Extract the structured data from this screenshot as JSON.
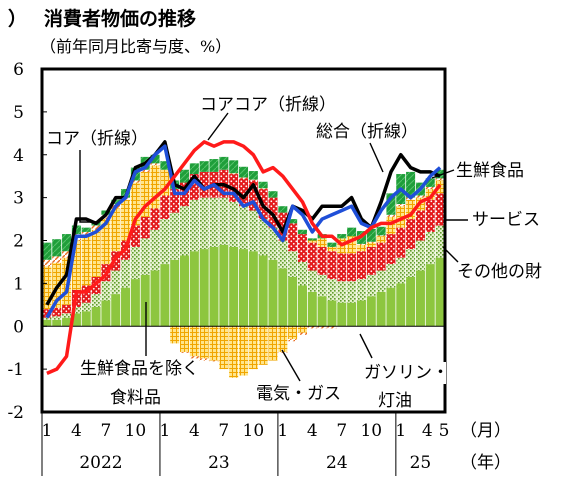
{
  "chart_data": {
    "type": "bar",
    "heading_mark": "）",
    "title": "消費者物価の推移",
    "subtitle": "（前年同月比寄与度、%）",
    "ylim": [
      -2,
      6
    ],
    "y_ticks": [
      "6",
      "5",
      "4",
      "3",
      "2",
      "1",
      "0",
      "-1",
      "-2"
    ],
    "month_ticks": [
      "1",
      "4",
      "7",
      "10",
      "1",
      "4",
      "7",
      "10",
      "1",
      "4",
      "7",
      "10",
      "1",
      "4",
      "5"
    ],
    "year_labels": [
      "2022",
      "23",
      "24",
      "25"
    ],
    "x_unit_month": "（月）",
    "x_unit_year": "（年）",
    "categories": [
      "2022-01",
      "2022-02",
      "2022-03",
      "2022-04",
      "2022-05",
      "2022-06",
      "2022-07",
      "2022-08",
      "2022-09",
      "2022-10",
      "2022-11",
      "2022-12",
      "2023-01",
      "2023-02",
      "2023-03",
      "2023-04",
      "2023-05",
      "2023-06",
      "2023-07",
      "2023-08",
      "2023-09",
      "2023-10",
      "2023-11",
      "2023-12",
      "2024-01",
      "2024-02",
      "2024-03",
      "2024-04",
      "2024-05",
      "2024-06",
      "2024-07",
      "2024-08",
      "2024-09",
      "2024-10",
      "2024-11",
      "2024-12",
      "2025-01",
      "2025-02",
      "2025-03",
      "2025-04",
      "2025-05"
    ],
    "series": [
      {
        "name": "その他の財",
        "color": "#8dc63f",
        "pattern": "solid",
        "values": [
          0.15,
          0.15,
          0.2,
          0.3,
          0.35,
          0.45,
          0.6,
          0.75,
          0.9,
          1.1,
          1.2,
          1.3,
          1.45,
          1.55,
          1.65,
          1.75,
          1.8,
          1.85,
          1.9,
          1.85,
          1.8,
          1.75,
          1.65,
          1.55,
          1.35,
          1.15,
          0.95,
          0.8,
          0.7,
          0.6,
          0.55,
          0.55,
          0.6,
          0.7,
          0.8,
          0.9,
          1.0,
          1.15,
          1.3,
          1.45,
          1.6
        ]
      },
      {
        "name": "生鮮食品を除く食料品",
        "color": "#c9e3a0",
        "pattern": "dots",
        "values": [
          0.05,
          0.08,
          0.1,
          0.15,
          0.2,
          0.3,
          0.45,
          0.55,
          0.65,
          0.75,
          0.85,
          0.95,
          1.05,
          1.1,
          1.15,
          1.2,
          1.2,
          1.15,
          1.1,
          1.05,
          1.0,
          0.95,
          0.85,
          0.75,
          0.65,
          0.6,
          0.55,
          0.5,
          0.5,
          0.5,
          0.5,
          0.5,
          0.5,
          0.5,
          0.5,
          0.55,
          0.6,
          0.65,
          0.7,
          0.75,
          0.75
        ]
      },
      {
        "name": "サービス",
        "color": "#e31a1c",
        "pattern": "dots",
        "values": [
          0.2,
          0.2,
          0.2,
          0.4,
          0.4,
          0.4,
          0.4,
          0.45,
          0.45,
          0.5,
          0.5,
          0.5,
          0.55,
          0.55,
          0.55,
          0.6,
          0.6,
          0.6,
          0.65,
          0.65,
          0.65,
          0.7,
          0.7,
          0.7,
          0.65,
          0.65,
          0.65,
          0.65,
          0.65,
          0.65,
          0.65,
          0.65,
          0.65,
          0.65,
          0.65,
          0.7,
          0.7,
          0.7,
          0.7,
          0.75,
          0.75
        ]
      },
      {
        "name": "電気・ガス",
        "color": "#ffd23f",
        "pattern": "grid",
        "values": [
          1.0,
          1.05,
          1.1,
          1.15,
          1.15,
          1.1,
          1.05,
          1.0,
          0.95,
          1.0,
          1.05,
          1.0,
          0.6,
          -0.4,
          -0.6,
          -0.7,
          -0.75,
          -0.8,
          -1.0,
          -1.2,
          -1.15,
          -1.0,
          -0.9,
          -0.8,
          -0.6,
          -0.3,
          -0.15,
          0.05,
          0.2,
          0.1,
          0.35,
          0.4,
          0.15,
          0.1,
          0.15,
          0.4,
          0.5,
          0.45,
          0.3,
          0.25,
          0.3
        ]
      },
      {
        "name": "ガソリン・灯油",
        "color": "#f4a582",
        "pattern": "stripes",
        "values": [
          0.15,
          0.15,
          0.15,
          0.15,
          0.1,
          0.1,
          0.1,
          0.1,
          0.05,
          0.05,
          0.05,
          0.05,
          0.0,
          0.0,
          -0.02,
          -0.05,
          -0.05,
          -0.02,
          0.0,
          0.02,
          0.02,
          0.02,
          0.02,
          0.0,
          -0.02,
          -0.05,
          -0.05,
          -0.05,
          -0.05,
          -0.05,
          0.0,
          0.0,
          0.02,
          0.02,
          0.02,
          0.05,
          0.05,
          0.05,
          0.05,
          0.05,
          0.05
        ]
      },
      {
        "name": "生鮮食品",
        "color": "#1f9e3a",
        "pattern": "solid",
        "values": [
          0.4,
          0.4,
          0.4,
          0.2,
          0.1,
          0.1,
          0.1,
          0.1,
          0.2,
          0.3,
          0.3,
          0.2,
          0.2,
          0.2,
          0.3,
          0.25,
          0.25,
          0.3,
          0.3,
          0.3,
          0.25,
          0.2,
          0.15,
          0.15,
          0.15,
          0.1,
          0.1,
          0.05,
          0.1,
          0.1,
          0.1,
          0.2,
          0.3,
          0.3,
          0.2,
          0.5,
          0.7,
          0.6,
          0.3,
          0.2,
          0.2
        ]
      },
      {
        "name": "総合",
        "color": "#000000",
        "pattern": "line",
        "values": [
          0.5,
          0.9,
          1.2,
          2.5,
          2.5,
          2.4,
          2.6,
          3.0,
          3.0,
          3.7,
          3.8,
          4.0,
          4.3,
          3.3,
          3.2,
          3.5,
          3.2,
          3.3,
          3.3,
          3.2,
          3.0,
          3.3,
          2.8,
          2.6,
          2.2,
          2.8,
          2.7,
          2.5,
          2.8,
          2.8,
          2.8,
          3.0,
          2.5,
          2.3,
          2.9,
          3.6,
          4.0,
          3.7,
          3.6,
          3.6,
          3.5
        ]
      },
      {
        "name": "コア（折線）",
        "color": "#1f4fd8",
        "pattern": "line",
        "values": [
          0.2,
          0.6,
          0.8,
          2.1,
          2.1,
          2.2,
          2.4,
          2.8,
          3.0,
          3.6,
          3.7,
          4.0,
          4.2,
          3.1,
          3.1,
          3.4,
          3.2,
          3.3,
          3.1,
          3.1,
          2.8,
          2.9,
          2.5,
          2.3,
          2.0,
          2.8,
          2.6,
          2.2,
          2.5,
          2.6,
          2.7,
          2.8,
          2.4,
          2.3,
          2.7,
          3.0,
          3.2,
          3.0,
          3.2,
          3.5,
          3.7
        ]
      },
      {
        "name": "コアコア（折線）",
        "color": "#ff1a1a",
        "pattern": "line",
        "values": [
          -1.1,
          -1.0,
          -0.7,
          0.8,
          0.8,
          1.0,
          1.2,
          1.6,
          1.8,
          2.5,
          2.8,
          3.0,
          3.2,
          3.5,
          3.8,
          4.1,
          4.3,
          4.2,
          4.3,
          4.3,
          4.2,
          4.0,
          3.6,
          3.7,
          3.5,
          3.2,
          2.9,
          2.4,
          2.1,
          2.1,
          1.9,
          2.0,
          2.1,
          2.3,
          2.4,
          2.4,
          2.5,
          2.6,
          2.9,
          3.0,
          3.3
        ]
      }
    ],
    "annotations": {
      "core": "コア（折線）",
      "core_core": "コアコア（折線）",
      "headline": "総合（折線）",
      "fresh_food": "生鮮食品",
      "services": "サービス",
      "other_goods": "その他の財",
      "food_excl_fresh": [
        "生鮮食品を除く",
        "食料品"
      ],
      "energy_power": "電気・ガス",
      "fuel": [
        "ガソリン・",
        "灯油"
      ]
    }
  }
}
